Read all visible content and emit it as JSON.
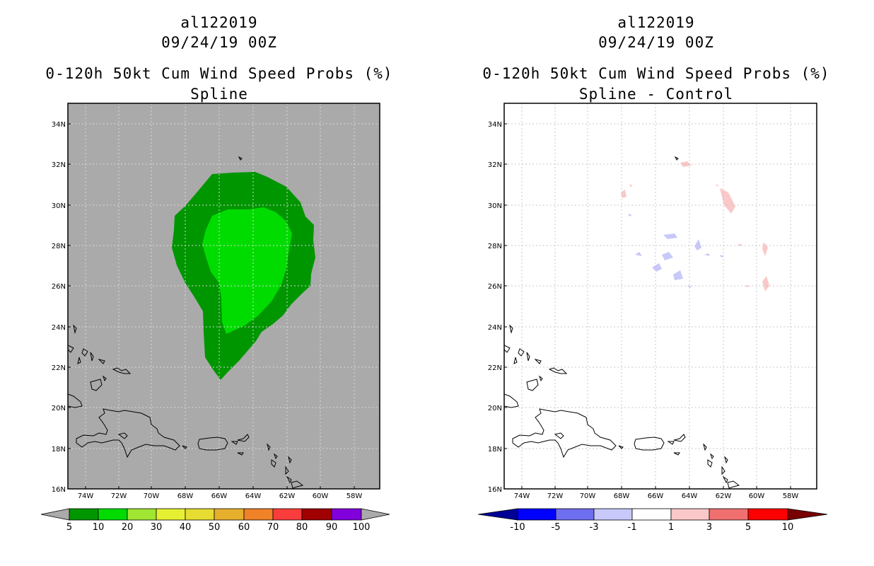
{
  "left": {
    "storm_id": "al122019",
    "datetime": "09/24/19 00Z",
    "title": "0-120h 50kt Cum Wind Speed Probs (%)",
    "subtitle": "Spline",
    "background": "#aaaaaa",
    "contour_colors": {
      "c5": "#009600",
      "c10": "#00dc00"
    },
    "colorbar": {
      "labels": [
        "5",
        "10",
        "20",
        "30",
        "40",
        "50",
        "60",
        "70",
        "80",
        "90",
        "100"
      ],
      "colors": [
        "#009600",
        "#00dc00",
        "#a0e632",
        "#e6f032",
        "#e6dc32",
        "#e6af2d",
        "#f08228",
        "#fa3c3c",
        "#a00000",
        "#8200dc"
      ],
      "under_color": "#aaaaaa",
      "over_color": "#aaaaaa"
    }
  },
  "right": {
    "storm_id": "al122019",
    "datetime": "09/24/19 00Z",
    "title": "0-120h 50kt Cum Wind Speed Probs (%)",
    "subtitle": "Spline - Control",
    "background": "#ffffff",
    "colorbar": {
      "labels": [
        "-10",
        "-5",
        "-3",
        "-1",
        "1",
        "3",
        "5",
        "10"
      ],
      "colors": [
        "#0000ff",
        "#6e6ef0",
        "#c8c8fa",
        "#ffffff",
        "#fac8c8",
        "#f07070",
        "#ff0000"
      ],
      "under_color": "#000096",
      "over_color": "#780000"
    }
  },
  "axes": {
    "lat_labels": [
      "34N",
      "32N",
      "30N",
      "28N",
      "26N",
      "24N",
      "22N",
      "20N",
      "18N",
      "16N"
    ],
    "lon_labels": [
      "74W",
      "72W",
      "70W",
      "68W",
      "66W",
      "64W",
      "62W",
      "60W",
      "58W"
    ]
  }
}
